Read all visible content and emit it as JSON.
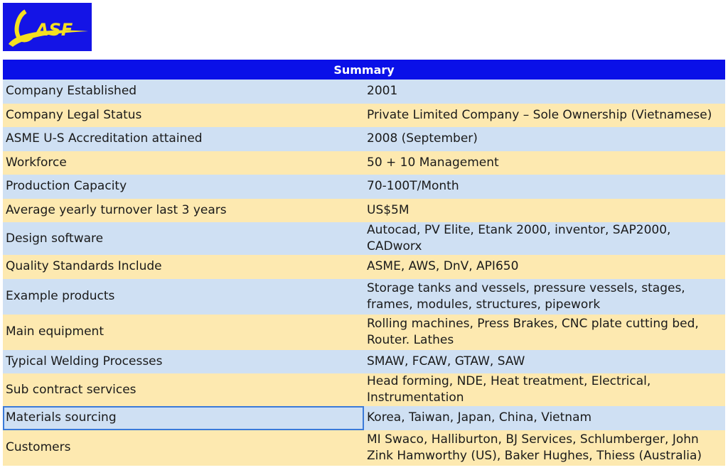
{
  "logo": {
    "text": "ASF"
  },
  "summary": {
    "header": "Summary",
    "rows": [
      {
        "label": "Company Established",
        "value": "2001"
      },
      {
        "label": "Company Legal Status",
        "value": "Private Limited Company – Sole Ownership (Vietnamese)"
      },
      {
        "label": "ASME U-S Accreditation attained",
        "value": "2008 (September)"
      },
      {
        "label": "Workforce",
        "value": "50 + 10 Management"
      },
      {
        "label": "Production Capacity",
        "value": "70-100T/Month"
      },
      {
        "label": "Average yearly turnover last 3 years",
        "value": "US$5M"
      },
      {
        "label": "Design software",
        "value": "Autocad, PV Elite, Etank 2000, inventor, SAP2000, CADworx"
      },
      {
        "label": "Quality Standards Include",
        "value": "ASME, AWS, DnV, API650"
      },
      {
        "label": "Example products",
        "value": "Storage tanks and vessels, pressure vessels, stages, frames, modules, structures, pipework"
      },
      {
        "label": "Main equipment",
        "value": "Rolling machines, Press Brakes, CNC plate cutting bed, Router. Lathes"
      },
      {
        "label": "Typical Welding Processes",
        "value": "SMAW, FCAW, GTAW, SAW"
      },
      {
        "label": "Sub contract services",
        "value": "Head forming, NDE, Heat treatment, Electrical, Instrumentation"
      },
      {
        "label": "Materials sourcing",
        "value": "Korea, Taiwan, Japan, China, Vietnam"
      },
      {
        "label": "Customers",
        "value": "MI Swaco, Halliburton, BJ Services, Schlumberger, John Zink Hamworthy (US), Baker Hughes, Thiess (Australia)"
      }
    ]
  }
}
